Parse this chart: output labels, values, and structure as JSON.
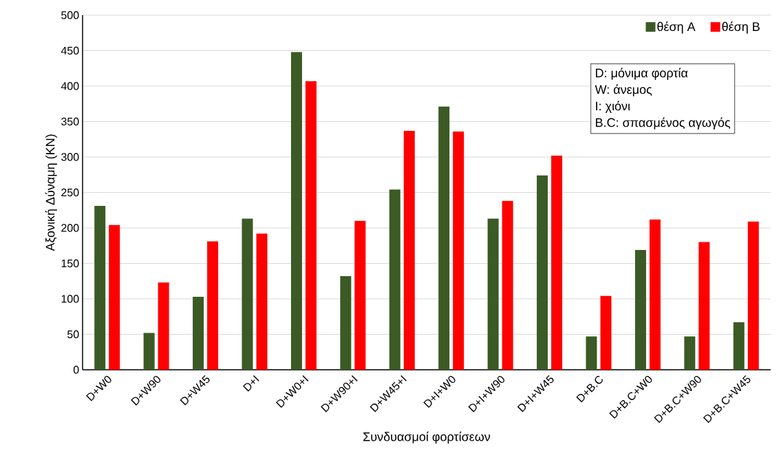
{
  "chart_data": {
    "type": "bar",
    "xlabel": "Συνδυασμοί φορτίσεων",
    "ylabel": "Αξονική Δύναμη (KN)",
    "categories": [
      "D+W0",
      "D+W90",
      "D+W45",
      "D+I",
      "D+W0+I",
      "D+W90+I",
      "D+W45+I",
      "D+I+W0",
      "D+I+W90",
      "D+I+W45",
      "D+B.C",
      "D+B.C+W0",
      "D+B.C+W90",
      "D+B.C+W45"
    ],
    "series": [
      {
        "name": "θέση A",
        "color": "#3b5a25",
        "values": [
          231,
          52,
          103,
          213,
          448,
          132,
          254,
          371,
          213,
          274,
          47,
          169,
          47,
          67
        ]
      },
      {
        "name": "θέση B",
        "color": "#ff0000",
        "values": [
          204,
          123,
          181,
          192,
          407,
          210,
          337,
          336,
          238,
          302,
          104,
          212,
          180,
          209
        ]
      }
    ],
    "ylim": [
      0,
      500
    ],
    "yticks": [
      0,
      50,
      100,
      150,
      200,
      250,
      300,
      350,
      400,
      450,
      500
    ],
    "grid": "y",
    "legend": "top right",
    "annotations": [
      "D: μόνιμα φορτία",
      "W: άνεμος",
      "I: χιόνι",
      "B.C: σπασμένος αγωγός"
    ]
  }
}
